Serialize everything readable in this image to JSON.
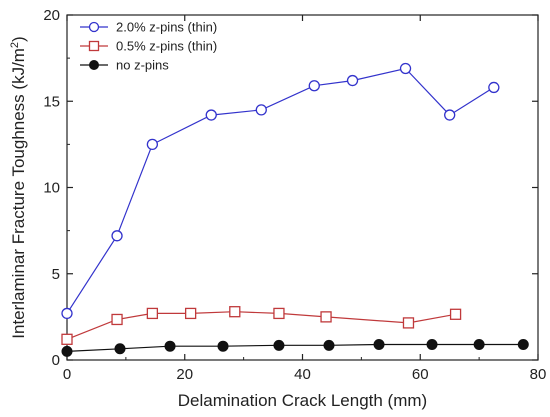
{
  "chart_data": {
    "type": "line",
    "title": "",
    "xlabel": "Delamination Crack Length (mm)",
    "ylabel": "Interlaminar Fracture Toughness (kJ/m",
    "ylabel_sup": "2",
    "ylabel_close": ")",
    "xlim": [
      0,
      80
    ],
    "ylim": [
      0,
      20
    ],
    "x_ticks": [
      0,
      20,
      40,
      60,
      80
    ],
    "y_ticks": [
      0,
      5,
      10,
      15,
      20
    ],
    "grid": false,
    "legend_position": "top-left",
    "series": [
      {
        "name": "2.0% z-pins (thin)",
        "color": "#3333cc",
        "marker": "circle-open",
        "x": [
          0,
          8.5,
          14.5,
          24.5,
          33,
          42,
          48.5,
          57.5,
          65,
          72.5
        ],
        "y": [
          2.7,
          7.2,
          12.5,
          14.2,
          14.5,
          15.9,
          16.2,
          16.9,
          14.2,
          15.8
        ]
      },
      {
        "name": "0.5% z-pins (thin)",
        "color": "#c0393b",
        "marker": "square-open",
        "x": [
          0,
          8.5,
          14.5,
          21,
          28.5,
          36,
          44,
          58,
          66
        ],
        "y": [
          1.2,
          2.35,
          2.7,
          2.7,
          2.8,
          2.7,
          2.5,
          2.15,
          2.65
        ]
      },
      {
        "name": "no z-pins",
        "color": "#111111",
        "marker": "circle-filled",
        "x": [
          0,
          9,
          17.5,
          26.5,
          36,
          44.5,
          53,
          62,
          70,
          77.5
        ],
        "y": [
          0.5,
          0.65,
          0.8,
          0.8,
          0.85,
          0.85,
          0.9,
          0.9,
          0.9,
          0.9
        ]
      }
    ]
  }
}
